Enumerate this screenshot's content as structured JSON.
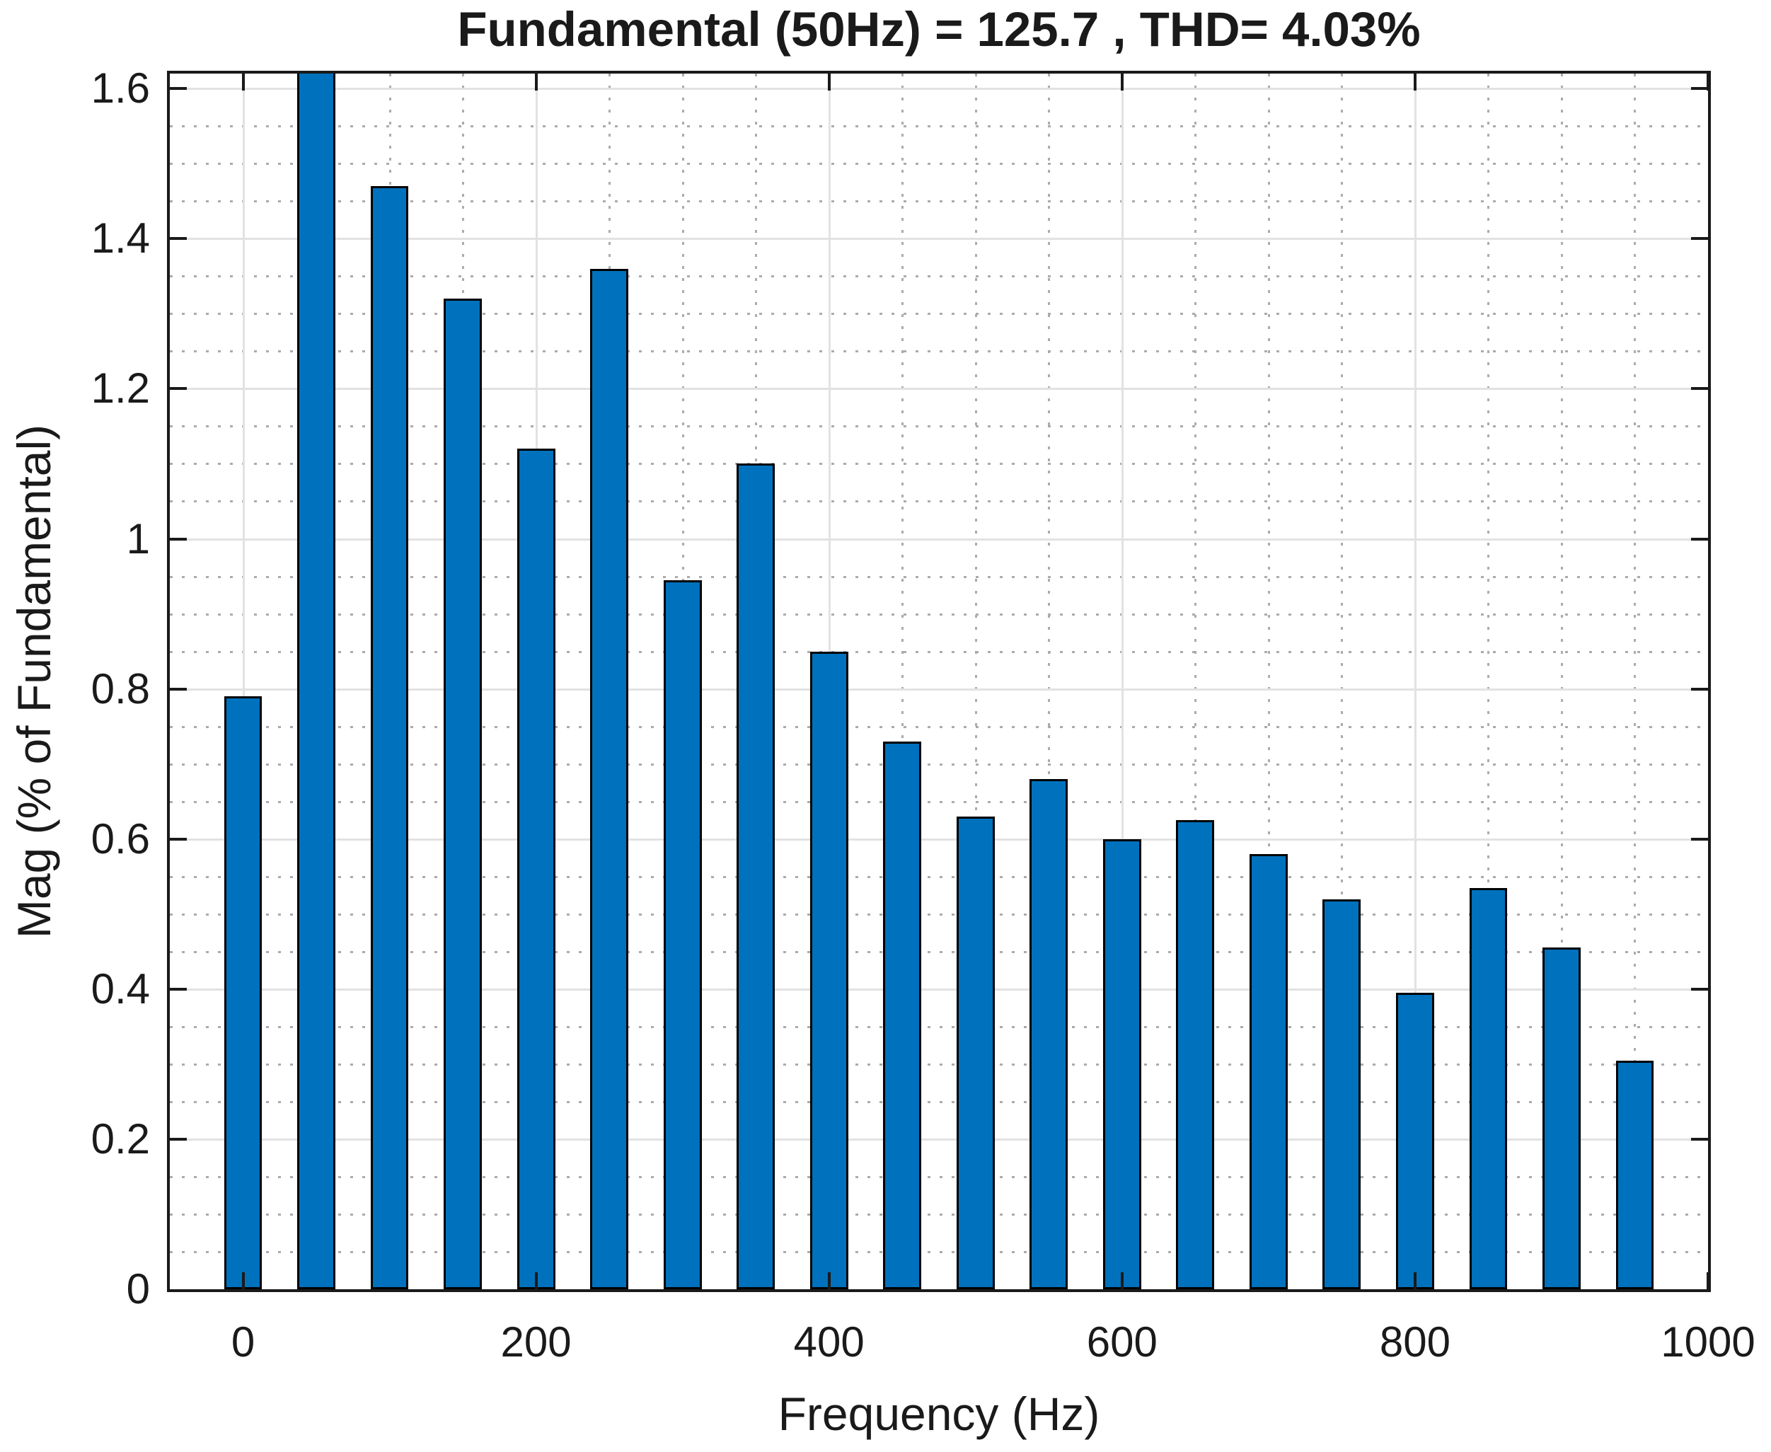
{
  "title": "Fundamental (50Hz) = 125.7 , THD= 4.03%",
  "chart_data": {
    "type": "bar",
    "title": "Fundamental (50Hz) = 125.7 , THD= 4.03%",
    "xlabel": "Frequency (Hz)",
    "ylabel": "Mag (% of Fundamental)",
    "x": [
      0,
      50,
      100,
      150,
      200,
      250,
      300,
      350,
      400,
      450,
      500,
      550,
      600,
      650,
      700,
      750,
      800,
      850,
      900,
      950
    ],
    "values": [
      0.79,
      1.62,
      1.47,
      1.32,
      1.12,
      1.36,
      0.945,
      1.1,
      0.85,
      0.73,
      0.63,
      0.68,
      0.6,
      0.625,
      0.58,
      0.52,
      0.395,
      0.535,
      0.455,
      0.305
    ],
    "clipped_indices": [
      1
    ],
    "note": "The 50 Hz fundamental bar exceeds the y-axis limit and is clipped at the top of the axes",
    "xlim": [
      -50,
      1000
    ],
    "ylim": [
      0,
      1.62
    ],
    "x_ticks": [
      0,
      200,
      400,
      600,
      800,
      1000
    ],
    "x_tick_labels": [
      "0",
      "200",
      "400",
      "600",
      "800",
      "1000"
    ],
    "y_ticks": [
      0,
      0.2,
      0.4,
      0.6,
      0.8,
      1,
      1.2,
      1.4,
      1.6
    ],
    "y_tick_labels": [
      "0",
      "0.2",
      "0.4",
      "0.6",
      "0.8",
      "1",
      "1.2",
      "1.4",
      "1.6"
    ],
    "minor_x_step": 50,
    "minor_y_step": 0.05,
    "grid": "major solid gray, minor dotted gray, box on, ticks inward",
    "legend": "none",
    "bar_width_hz": 26,
    "bar_color": "#0072BD",
    "bar_edge_color": "#000000"
  },
  "colors": {
    "background": "#ffffff",
    "axis_box": "#1a1a1a",
    "major_grid": "#e2e2e2",
    "minor_grid": "#ababab",
    "text": "#1a1a1a",
    "bar_fill": "#0072BD",
    "bar_edge": "#000000"
  }
}
